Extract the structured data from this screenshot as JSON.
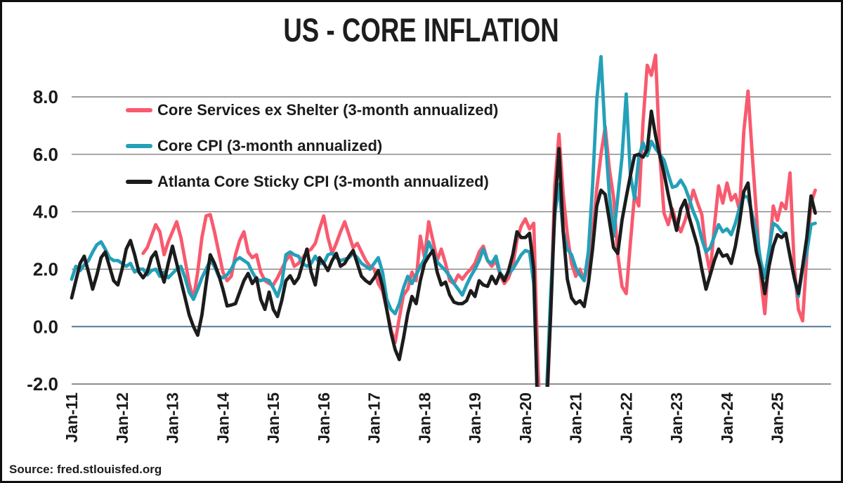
{
  "title": "US - CORE INFLATION",
  "source": "Source: fred.stlouisfed.org",
  "chart_data": {
    "type": "line",
    "title": "US - CORE INFLATION",
    "xlabel": "",
    "ylabel": "",
    "start_month": "2011-01",
    "frequency": "monthly",
    "ylim": [
      -2.05,
      9.6
    ],
    "grid": "horizontal",
    "legend_position": "top-left",
    "grid_color": "#7f7f7f",
    "zero_line_color": "#5d7e9b",
    "y_ticks": [
      {
        "label": "8.0",
        "value": 8
      },
      {
        "label": "6.0",
        "value": 6
      },
      {
        "label": "4.0",
        "value": 4
      },
      {
        "label": "2.0",
        "value": 2
      },
      {
        "label": "0.0",
        "value": 0
      },
      {
        "label": "-2.0",
        "value": -2
      }
    ],
    "x_ticks": [
      "Jan-11",
      "Jan-12",
      "Jan-13",
      "Jan-14",
      "Jan-15",
      "Jan-16",
      "Jan-17",
      "Jan-18",
      "Jan-19",
      "Jan-20",
      "Jan-21",
      "Jan-22",
      "Jan-23",
      "Jan-24",
      "Jan-25"
    ],
    "series": [
      {
        "name": "Core Services ex Shelter (3-month annualized)",
        "color": "#F85A6E",
        "values": [
          null,
          null,
          null,
          null,
          null,
          null,
          null,
          null,
          null,
          null,
          null,
          null,
          null,
          null,
          null,
          null,
          null,
          2.55,
          2.75,
          3.15,
          3.55,
          3.3,
          2.5,
          2.95,
          3.3,
          3.65,
          3.1,
          2.3,
          1.5,
          0.95,
          1.9,
          3.1,
          3.85,
          3.9,
          3.3,
          2.6,
          1.9,
          1.6,
          1.75,
          2.5,
          3.0,
          3.3,
          2.6,
          2.4,
          2.5,
          1.9,
          1.6,
          1.5,
          1.45,
          1.7,
          2.0,
          2.3,
          2.5,
          2.1,
          2.2,
          2.4,
          2.6,
          2.7,
          2.9,
          3.4,
          3.85,
          3.1,
          2.55,
          2.9,
          3.3,
          3.65,
          3.2,
          2.75,
          2.9,
          2.6,
          2.3,
          2.1,
          2.0,
          1.5,
          1.25,
          0.6,
          -0.1,
          -0.55,
          0.3,
          1.1,
          1.3,
          1.9,
          1.6,
          3.15,
          2.4,
          3.65,
          3.0,
          2.3,
          2.7,
          2.2,
          1.6,
          1.5,
          1.8,
          1.65,
          1.85,
          2.0,
          2.2,
          2.6,
          2.8,
          2.3,
          2.1,
          2.3,
          1.8,
          1.5,
          1.7,
          2.1,
          3.0,
          3.5,
          3.75,
          3.4,
          3.6,
          -1.5,
          -4.5,
          -3.5,
          0.5,
          4.9,
          6.7,
          4.6,
          3.2,
          2.2,
          1.75,
          2.0,
          1.6,
          2.2,
          3.2,
          4.8,
          6.0,
          6.95,
          5.5,
          4.5,
          2.5,
          1.4,
          1.15,
          2.9,
          4.6,
          4.2,
          7.1,
          9.1,
          8.75,
          9.45,
          6.0,
          3.95,
          3.55,
          4.1,
          3.6,
          3.3,
          3.7,
          4.2,
          4.75,
          4.3,
          3.9,
          2.6,
          1.85,
          3.5,
          4.9,
          4.3,
          5.0,
          4.4,
          4.6,
          4.05,
          6.8,
          8.2,
          6.0,
          3.95,
          1.75,
          0.45,
          2.5,
          4.2,
          3.7,
          4.3,
          4.1,
          5.35,
          2.1,
          0.6,
          0.2,
          2.5,
          4.3,
          4.75
        ]
      },
      {
        "name": "Core CPI (3-month annualized)",
        "color": "#24A0B9",
        "values": [
          1.65,
          2.1,
          1.95,
          2.15,
          2.3,
          2.6,
          2.85,
          2.95,
          2.7,
          2.4,
          2.3,
          2.3,
          2.2,
          2.1,
          2.2,
          1.9,
          2.0,
          2.0,
          1.8,
          1.95,
          2.0,
          1.75,
          1.9,
          1.7,
          1.85,
          2.0,
          2.1,
          1.7,
          1.2,
          0.95,
          1.3,
          1.7,
          2.0,
          2.3,
          2.1,
          1.75,
          1.7,
          1.8,
          2.0,
          2.3,
          2.4,
          2.3,
          2.2,
          1.9,
          1.65,
          1.6,
          1.65,
          1.6,
          1.35,
          1.05,
          1.5,
          2.5,
          2.6,
          2.5,
          2.45,
          2.2,
          2.1,
          2.2,
          2.45,
          2.2,
          2.2,
          2.5,
          2.55,
          2.4,
          2.3,
          2.35,
          2.4,
          2.55,
          2.4,
          2.2,
          2.1,
          2.0,
          2.2,
          2.4,
          1.9,
          0.95,
          0.6,
          0.45,
          0.8,
          1.35,
          1.75,
          1.5,
          1.8,
          2.1,
          2.35,
          2.95,
          2.6,
          2.25,
          2.1,
          1.95,
          1.75,
          1.5,
          1.3,
          1.1,
          1.45,
          1.75,
          2.0,
          2.3,
          2.7,
          2.3,
          2.2,
          2.45,
          1.85,
          1.7,
          1.85,
          2.0,
          2.25,
          2.5,
          2.65,
          2.6,
          1.5,
          -3.0,
          -4.3,
          -2.5,
          1.0,
          3.9,
          4.95,
          3.3,
          2.7,
          2.5,
          2.05,
          1.8,
          1.6,
          2.6,
          4.9,
          7.9,
          9.4,
          6.65,
          4.6,
          3.15,
          4.5,
          5.9,
          8.1,
          5.3,
          4.45,
          5.9,
          6.4,
          5.95,
          6.45,
          6.2,
          6.0,
          5.8,
          5.3,
          4.85,
          4.9,
          5.1,
          4.85,
          4.45,
          4.0,
          3.65,
          3.05,
          2.6,
          2.75,
          3.15,
          3.55,
          3.3,
          3.4,
          3.2,
          3.6,
          4.15,
          4.55,
          4.5,
          3.9,
          3.3,
          2.3,
          1.7,
          2.65,
          3.6,
          3.5,
          3.3,
          3.2,
          2.45,
          1.7,
          1.05,
          2.0,
          2.6,
          3.55,
          3.6
        ]
      },
      {
        "name": "Atlanta Core Sticky CPI (3-month annualized)",
        "color": "#1C1C1C",
        "values": [
          1.0,
          1.6,
          2.2,
          2.45,
          1.9,
          1.3,
          1.8,
          2.4,
          2.6,
          2.1,
          1.6,
          1.45,
          2.0,
          2.7,
          3.0,
          2.5,
          1.9,
          1.7,
          1.9,
          2.4,
          2.6,
          2.0,
          1.55,
          2.2,
          2.8,
          2.2,
          1.6,
          1.0,
          0.4,
          0.0,
          -0.3,
          0.4,
          1.5,
          2.5,
          2.2,
          1.8,
          1.3,
          0.72,
          0.75,
          0.8,
          1.2,
          1.6,
          1.85,
          1.5,
          1.7,
          0.95,
          0.6,
          1.2,
          0.6,
          0.35,
          0.9,
          1.6,
          1.77,
          1.5,
          1.7,
          2.2,
          2.7,
          1.9,
          1.45,
          2.4,
          2.2,
          1.95,
          2.3,
          2.55,
          2.1,
          2.2,
          2.45,
          2.65,
          2.2,
          1.75,
          1.6,
          1.5,
          1.7,
          1.95,
          1.4,
          0.6,
          -0.2,
          -0.8,
          -1.15,
          -0.4,
          0.45,
          1.05,
          0.8,
          1.6,
          2.2,
          2.45,
          2.65,
          1.9,
          1.45,
          1.55,
          1.1,
          0.85,
          0.8,
          0.8,
          0.9,
          1.25,
          1.05,
          1.6,
          1.45,
          1.4,
          1.75,
          1.5,
          1.85,
          1.6,
          1.95,
          2.5,
          3.3,
          3.1,
          3.1,
          3.25,
          2.0,
          -3.5,
          -4.8,
          -3.0,
          0.3,
          4.1,
          6.2,
          3.3,
          1.65,
          1.0,
          0.8,
          0.9,
          0.7,
          1.5,
          2.7,
          4.2,
          4.75,
          4.6,
          3.7,
          2.75,
          2.55,
          3.7,
          4.5,
          5.25,
          5.95,
          6.0,
          5.9,
          6.15,
          7.5,
          6.65,
          5.95,
          5.35,
          4.6,
          3.95,
          3.35,
          4.1,
          4.4,
          3.8,
          3.3,
          2.8,
          2.0,
          1.3,
          1.8,
          2.3,
          2.7,
          2.45,
          2.5,
          2.2,
          2.8,
          3.65,
          4.7,
          5.0,
          3.6,
          2.6,
          2.0,
          1.15,
          2.1,
          2.8,
          3.2,
          3.1,
          3.25,
          2.45,
          1.7,
          1.15,
          2.1,
          3.1,
          4.55,
          3.95
        ]
      }
    ]
  }
}
